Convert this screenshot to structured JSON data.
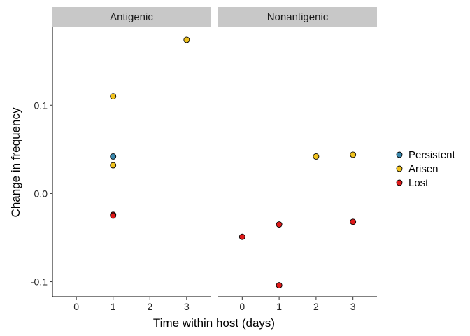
{
  "chart_data": {
    "type": "scatter",
    "facet_by": "panel",
    "panels": [
      "Antigenic",
      "Nonantigenic"
    ],
    "xlabel": "Time within host (days)",
    "ylabel": "Change in frequency",
    "xlim": [
      -0.65,
      3.65
    ],
    "ylim": [
      -0.117,
      0.189
    ],
    "x_ticks": [
      0,
      1,
      2,
      3
    ],
    "y_ticks": [
      {
        "value": -0.1,
        "label": "-0.1"
      },
      {
        "value": 0.0,
        "label": "0.0"
      },
      {
        "value": 0.1,
        "label": "0.1"
      }
    ],
    "grid": false,
    "legend_position": "right",
    "series": [
      {
        "name": "Persistent",
        "color": "#3a88ad",
        "points": [
          {
            "panel": "Antigenic",
            "x": 1,
            "y": 0.042
          }
        ]
      },
      {
        "name": "Arisen",
        "color": "#f0c21e",
        "points": [
          {
            "panel": "Antigenic",
            "x": 1,
            "y": 0.11
          },
          {
            "panel": "Antigenic",
            "x": 1,
            "y": 0.032
          },
          {
            "panel": "Antigenic",
            "x": 3,
            "y": 0.174
          },
          {
            "panel": "Nonantigenic",
            "x": 2,
            "y": 0.042
          },
          {
            "panel": "Nonantigenic",
            "x": 3,
            "y": 0.044
          }
        ]
      },
      {
        "name": "Lost",
        "color": "#e01a1a",
        "points": [
          {
            "panel": "Antigenic",
            "x": 1,
            "y": -0.024
          },
          {
            "panel": "Antigenic",
            "x": 1,
            "y": -0.025
          },
          {
            "panel": "Nonantigenic",
            "x": 0,
            "y": -0.049
          },
          {
            "panel": "Nonantigenic",
            "x": 1,
            "y": -0.035
          },
          {
            "panel": "Nonantigenic",
            "x": 1,
            "y": -0.104
          },
          {
            "panel": "Nonantigenic",
            "x": 3,
            "y": -0.032
          }
        ]
      }
    ]
  }
}
